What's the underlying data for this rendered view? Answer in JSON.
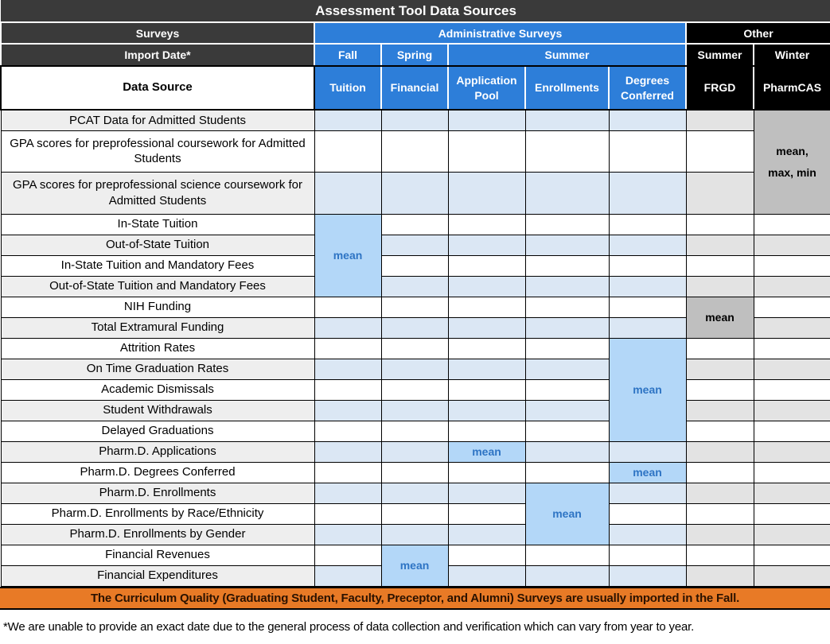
{
  "title": "Assessment Tool Data Sources",
  "header": {
    "surveys": "Surveys",
    "admin_surveys": "Administrative Surveys",
    "other": "Other",
    "import_date": "Import Date*",
    "fall": "Fall",
    "spring": "Spring",
    "summer": "Summer",
    "other_summer": "Summer",
    "other_winter": "Winter",
    "data_source": "Data Source",
    "col_tuition": "Tuition",
    "col_financial": "Financial",
    "col_application_pool": "Application Pool",
    "col_enrollments": "Enrollments",
    "col_degrees_conferred": "Degrees Conferred",
    "col_frgd": "FRGD",
    "col_pharmcas": "PharmCAS"
  },
  "rows": [
    "PCAT Data for Admitted Students",
    "GPA scores for preprofessional coursework for Admitted Students",
    "GPA scores for preprofessional science coursework for Admitted Students",
    "In-State Tuition",
    "Out-of-State Tuition",
    "In-State Tuition and Mandatory Fees",
    "Out-of-State Tuition and Mandatory Fees",
    "NIH Funding",
    "Total Extramural Funding",
    "Attrition Rates",
    "On Time Graduation Rates",
    "Academic Dismissals",
    "Student Withdrawals",
    "Delayed Graduations",
    "Pharm.D. Applications",
    "Pharm.D. Degrees Conferred",
    "Pharm.D. Enrollments",
    "Pharm.D. Enrollments by Race/Ethnicity",
    "Pharm.D. Enrollments by Gender",
    "Financial Revenues",
    "Financial Expenditures"
  ],
  "merges": [
    {
      "col": 6,
      "row": 0,
      "span": 3,
      "text": "mean,\nmax, min",
      "style": "gray"
    },
    {
      "col": 0,
      "row": 3,
      "span": 4,
      "text": "mean",
      "style": "blue"
    },
    {
      "col": 5,
      "row": 7,
      "span": 2,
      "text": "mean",
      "style": "gray"
    },
    {
      "col": 4,
      "row": 9,
      "span": 5,
      "text": "mean",
      "style": "blue"
    },
    {
      "col": 2,
      "row": 14,
      "span": 1,
      "text": "mean",
      "style": "blue"
    },
    {
      "col": 4,
      "row": 15,
      "span": 1,
      "text": "mean",
      "style": "blue"
    },
    {
      "col": 3,
      "row": 16,
      "span": 3,
      "text": "mean",
      "style": "blue"
    },
    {
      "col": 1,
      "row": 19,
      "span": 2,
      "text": "mean",
      "style": "blue"
    }
  ],
  "banner": "The Curriculum Quality (Graduating Student, Faculty, Preceptor, and Alumni) Surveys are usually imported in the Fall.",
  "footnote": "*We are unable to provide an exact date due to the general process of data collection and verification which can vary from year to year.",
  "colors": {
    "header_dark": "#3a3a3a",
    "header_blue": "#2d7ed9",
    "header_black": "#000000",
    "cell_blue": "#dbe7f4",
    "cell_gray": "#e3e3e3",
    "row_gray": "#eeeeee",
    "mean_blue_bg": "#b3d7f8",
    "mean_blue_text": "#2e74c4",
    "mean_gray_bg": "#bfbfbf",
    "banner_orange": "#e87a26",
    "banner_text": "#2b1200"
  }
}
